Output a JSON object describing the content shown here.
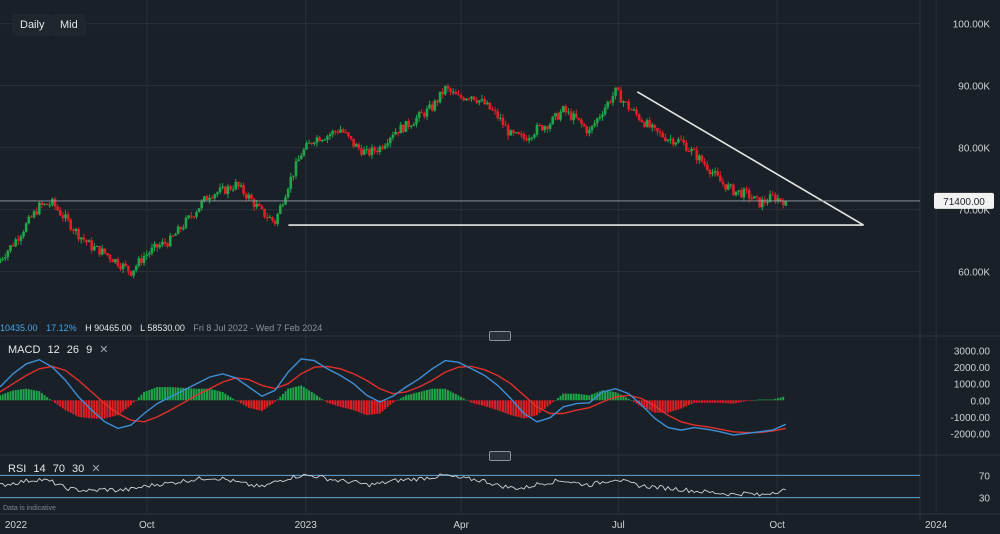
{
  "toolbar": {
    "daily_label": "Daily",
    "mid_label": "Mid"
  },
  "stats": {
    "change": "10435.00",
    "change_pct": "17.12%",
    "high": "H 90465.00",
    "low": "L 58530.00",
    "range": "Fri 8 Jul 2022 - Wed 7 Feb 2024"
  },
  "price_label": "71400.00",
  "macd_label": {
    "name": "MACD",
    "fast": "12",
    "slow": "26",
    "signal": "9",
    "close": "✕"
  },
  "rsi_label": {
    "name": "RSI",
    "period": "14",
    "upper": "70",
    "lower": "30",
    "close": "✕"
  },
  "disclaimer": "Data is indicative",
  "colors": {
    "up": "#1fa64a",
    "down": "#e11f26",
    "macd": "#3d8fd6",
    "signal": "#e0302c",
    "rsi": "#d0d3d6",
    "trend": "#e6e6e6",
    "background": "#1a2027"
  },
  "chart_data": [
    {
      "type": "candlestick",
      "title": "",
      "x_ticks": [
        "2022",
        "Oct",
        "2023",
        "Apr",
        "Jul",
        "Oct",
        "2024"
      ],
      "y_ticks": [
        "100.00K",
        "90.00K",
        "80.00K",
        "70.00K",
        "60.00K"
      ],
      "ylim": [
        53000,
        103000
      ],
      "current_price": 71400,
      "closes": [
        62000,
        64500,
        67500,
        70500,
        71000,
        68500,
        66000,
        64000,
        63000,
        61500,
        60000,
        62500,
        64000,
        65000,
        67500,
        70000,
        72500,
        73000,
        74000,
        72000,
        69500,
        68000,
        74000,
        79000,
        81500,
        82000,
        83000,
        80500,
        79000,
        80000,
        82500,
        83500,
        85000,
        86500,
        89500,
        88000,
        88500,
        87000,
        85000,
        82000,
        81500,
        83000,
        84000,
        86000,
        84500,
        82500,
        86000,
        89000,
        86500,
        84500,
        82500,
        81500,
        81000,
        79000,
        77000,
        74500,
        73000,
        72500,
        71000,
        72000,
        71400
      ],
      "trendline_resistance": [
        {
          "date": "2023-07-12",
          "value": 89000
        },
        {
          "date": "2023-11-20",
          "value": 67500
        }
      ],
      "support_line": {
        "from": "2022-12-22",
        "to": "2023-11-20",
        "value": 67500
      }
    },
    {
      "type": "macd",
      "params": [
        12,
        26,
        9
      ],
      "y_ticks": [
        "3000.00",
        "2000.00",
        "1000.00",
        "0.00",
        "-1000.00",
        "-2000.00"
      ],
      "ylim": [
        -2700,
        3400
      ],
      "macd": [
        800,
        1600,
        2200,
        2450,
        2000,
        1200,
        200,
        -600,
        -1300,
        -1700,
        -1500,
        -800,
        -200,
        200,
        600,
        1000,
        1400,
        1600,
        1350,
        800,
        250,
        600,
        1700,
        2500,
        2400,
        1900,
        1500,
        1000,
        300,
        -100,
        250,
        800,
        1300,
        1900,
        2400,
        2300,
        1900,
        1500,
        900,
        100,
        -800,
        -1300,
        -1050,
        -400,
        -200,
        -150,
        500,
        700,
        400,
        -300,
        -1100,
        -1650,
        -1800,
        -1650,
        -1750,
        -1900,
        -2100,
        -2000,
        -1900,
        -1800,
        -1450
      ],
      "signal": [
        500,
        1000,
        1500,
        1900,
        2050,
        1800,
        1200,
        500,
        -200,
        -800,
        -1200,
        -1300,
        -1000,
        -600,
        -150,
        300,
        700,
        1100,
        1350,
        1250,
        900,
        700,
        1000,
        1600,
        2000,
        2050,
        1900,
        1600,
        1200,
        700,
        400,
        500,
        800,
        1200,
        1700,
        2000,
        2050,
        1850,
        1500,
        1000,
        300,
        -400,
        -800,
        -800,
        -600,
        -450,
        -100,
        200,
        300,
        100,
        -350,
        -900,
        -1300,
        -1500,
        -1600,
        -1750,
        -1900,
        -1950,
        -1950,
        -1850,
        -1700
      ]
    },
    {
      "type": "rsi",
      "params": [
        14,
        70,
        30
      ],
      "y_ticks": [
        "70",
        "30"
      ],
      "ylim": [
        15,
        85
      ],
      "values": [
        52,
        56,
        60,
        63,
        58,
        47,
        44,
        42,
        45,
        43,
        45,
        50,
        54,
        56,
        60,
        63,
        66,
        64,
        58,
        53,
        49,
        58,
        65,
        70,
        69,
        64,
        60,
        58,
        53,
        55,
        60,
        62,
        64,
        67,
        70,
        65,
        63,
        60,
        52,
        48,
        47,
        54,
        58,
        61,
        56,
        53,
        58,
        64,
        56,
        51,
        49,
        47,
        45,
        42,
        40,
        38,
        36,
        38,
        34,
        40,
        44
      ]
    }
  ]
}
